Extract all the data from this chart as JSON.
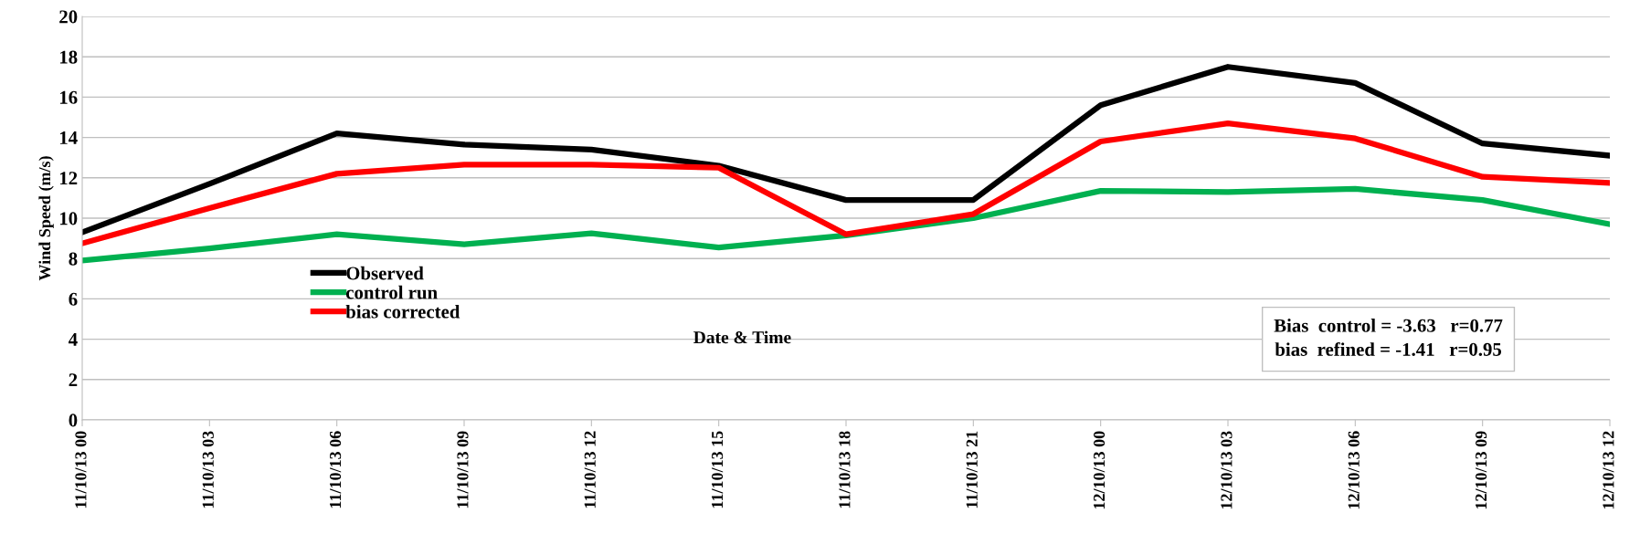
{
  "chart_data": {
    "type": "line",
    "xlabel": "Date & Time",
    "ylabel": "Wind Speed (m/s)",
    "categories": [
      "11/10/13 00",
      "11/10/13 03",
      "11/10/13 06",
      "11/10/13 09",
      "11/10/13 12",
      "11/10/13 15",
      "11/10/13 18",
      "11/10/13 21",
      "12/10/13 00",
      "12/10/13 03",
      "12/10/13 06",
      "12/10/13 09",
      "12/10/13 12"
    ],
    "series": [
      {
        "name": "Observed",
        "color": "#000000",
        "values": [
          9.3,
          11.7,
          14.2,
          13.65,
          13.4,
          12.6,
          10.9,
          10.9,
          15.6,
          17.5,
          16.7,
          13.7,
          13.1
        ]
      },
      {
        "name": "control run",
        "color": "#00b050",
        "values": [
          7.9,
          8.5,
          9.2,
          8.7,
          9.25,
          8.55,
          9.15,
          10.0,
          11.35,
          11.3,
          11.45,
          10.9,
          9.7
        ]
      },
      {
        "name": "bias corrected",
        "color": "#ff0000",
        "values": [
          8.75,
          10.5,
          12.2,
          12.65,
          12.65,
          12.5,
          9.2,
          10.2,
          13.8,
          14.7,
          13.95,
          12.05,
          11.75
        ]
      }
    ],
    "ylim": [
      0,
      20
    ],
    "yticks": [
      0,
      2,
      4,
      6,
      8,
      10,
      12,
      14,
      16,
      18,
      20
    ],
    "grid": "y",
    "legend": "left",
    "marker": "none",
    "line_style": "solid",
    "annotations": [
      "Bias  control = -3.63   r=0.77\nbias  refined = -1.41   r=0.95"
    ]
  }
}
